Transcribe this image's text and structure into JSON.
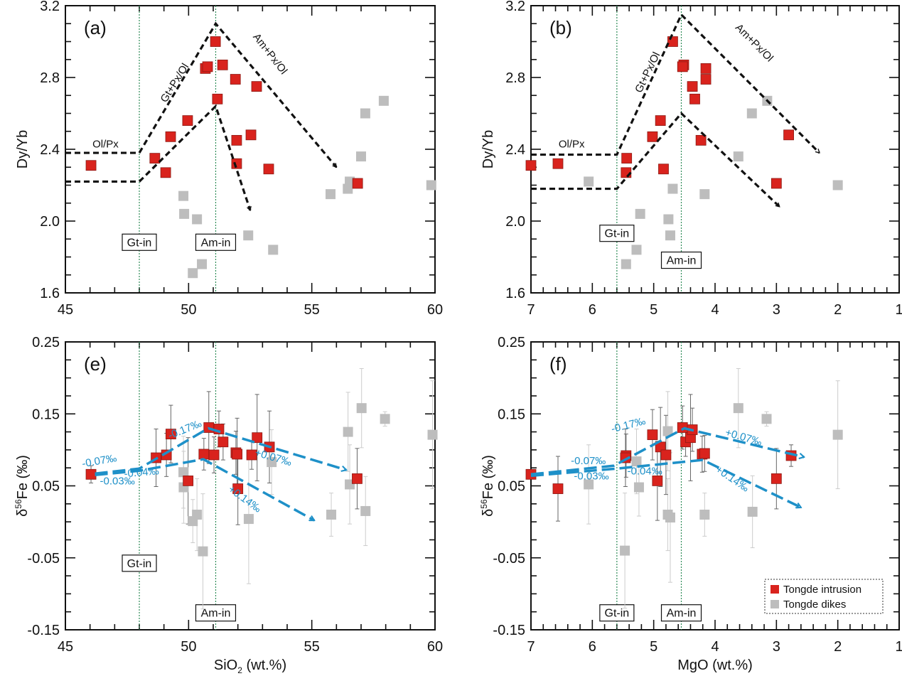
{
  "colors": {
    "intrusion": "#d9231d",
    "dikes": "#bdbdbd",
    "trend_black": "#111111",
    "trend_blue": "#1e90c8",
    "guide_green": "#2e8b57",
    "errbar_intrusion": "#666666",
    "errbar_dikes": "#cccccc"
  },
  "legend": {
    "placement": "bottom-right of panel (f)",
    "items": [
      {
        "label": "Tongde intrusion",
        "series": "intrusion"
      },
      {
        "label": "Tongde dikes",
        "series": "dikes"
      }
    ]
  },
  "chart_data": [
    {
      "id": "a",
      "type": "scatter",
      "panel_label": "(a)",
      "xlabel": "",
      "ylabel": "Dy/Yb",
      "xlim": [
        45,
        60
      ],
      "ylim": [
        1.6,
        3.2
      ],
      "x_reversed": false,
      "xticks": [
        45,
        50,
        55,
        60
      ],
      "yticks": [
        1.6,
        2.0,
        2.4,
        2.8,
        3.2
      ],
      "ytick_labels": [
        "1.6",
        "2.0",
        "2.4",
        "2.8",
        "3.2"
      ],
      "guides": [
        {
          "x": 48.0,
          "label": "Gt-in",
          "label_y": 1.88
        },
        {
          "x": 51.1,
          "label": "Am-in",
          "label_y": 1.88
        }
      ],
      "trends": [
        {
          "points": [
            [
              45,
              2.38
            ],
            [
              48.0,
              2.38
            ],
            [
              51.1,
              3.1
            ],
            [
              56.0,
              2.3
            ]
          ],
          "arrow": true
        },
        {
          "points": [
            [
              45,
              2.22
            ],
            [
              48.0,
              2.22
            ],
            [
              51.1,
              2.64
            ],
            [
              52.5,
              2.06
            ]
          ],
          "arrow": true
        }
      ],
      "annotations": [
        {
          "text": "Ol/Px",
          "x": 46.1,
          "y": 2.41,
          "angle": 0
        },
        {
          "text": "Gt+Px/Ol",
          "x": 49.55,
          "y": 2.76,
          "angle": -58
        },
        {
          "text": "Am+Px/Ol",
          "x": 53.2,
          "y": 2.92,
          "angle": 52
        }
      ],
      "series": [
        {
          "name": "Tongde intrusion",
          "key": "intrusion",
          "points": [
            [
              46.04,
              2.31
            ],
            [
              48.63,
              2.35
            ],
            [
              49.07,
              2.27
            ],
            [
              49.27,
              2.47
            ],
            [
              49.96,
              2.56
            ],
            [
              50.68,
              2.85
            ],
            [
              50.77,
              2.86
            ],
            [
              51.09,
              3.0
            ],
            [
              51.38,
              2.87
            ],
            [
              51.17,
              2.68
            ],
            [
              51.9,
              2.79
            ],
            [
              52.76,
              2.75
            ],
            [
              51.95,
              2.45
            ],
            [
              52.53,
              2.48
            ],
            [
              51.95,
              2.32
            ],
            [
              53.25,
              2.29
            ],
            [
              56.86,
              2.21
            ]
          ]
        },
        {
          "name": "Tongde dikes",
          "key": "dikes",
          "points": [
            [
              49.79,
              2.14
            ],
            [
              49.82,
              2.04
            ],
            [
              50.34,
              2.01
            ],
            [
              52.42,
              1.92
            ],
            [
              53.43,
              1.84
            ],
            [
              50.54,
              1.76
            ],
            [
              50.17,
              1.71
            ],
            [
              55.76,
              2.15
            ],
            [
              56.46,
              2.18
            ],
            [
              56.54,
              2.22
            ],
            [
              57.0,
              2.36
            ],
            [
              57.17,
              2.6
            ],
            [
              57.92,
              2.67
            ],
            [
              59.85,
              2.2
            ]
          ]
        }
      ]
    },
    {
      "id": "b",
      "type": "scatter",
      "panel_label": "(b)",
      "xlabel": "",
      "ylabel": "Dy/Yb",
      "xlim": [
        7,
        1
      ],
      "ylim": [
        1.6,
        3.2
      ],
      "x_reversed": true,
      "xticks": [
        7,
        6,
        5,
        4,
        3,
        2,
        1
      ],
      "yticks": [
        1.6,
        2.0,
        2.4,
        2.8,
        3.2
      ],
      "ytick_labels": [
        "1.6",
        "2.0",
        "2.4",
        "2.8",
        "3.2"
      ],
      "guides": [
        {
          "x": 5.6,
          "label": "Gt-in",
          "label_y": 1.93
        },
        {
          "x": 4.55,
          "label": "Am-in",
          "label_y": 1.78
        }
      ],
      "trends": [
        {
          "points": [
            [
              7,
              2.37
            ],
            [
              5.6,
              2.37
            ],
            [
              4.55,
              3.15
            ],
            [
              2.3,
              2.38
            ]
          ],
          "arrow": true
        },
        {
          "points": [
            [
              7,
              2.18
            ],
            [
              5.6,
              2.18
            ],
            [
              4.55,
              2.6
            ],
            [
              2.95,
              2.08
            ]
          ],
          "arrow": true
        }
      ],
      "annotations": [
        {
          "text": "Ol/Px",
          "x": 6.55,
          "y": 2.41,
          "angle": 0
        },
        {
          "text": "Gt+Px/Ol",
          "x": 5.05,
          "y": 2.82,
          "angle": -64
        },
        {
          "text": "Am+Px/Ol",
          "x": 3.4,
          "y": 2.98,
          "angle": 45
        }
      ],
      "series": [
        {
          "name": "Tongde intrusion",
          "key": "intrusion",
          "points": [
            [
              7.0,
              2.31
            ],
            [
              6.56,
              2.32
            ],
            [
              5.44,
              2.35
            ],
            [
              5.45,
              2.27
            ],
            [
              5.02,
              2.47
            ],
            [
              4.89,
              2.56
            ],
            [
              4.84,
              2.29
            ],
            [
              4.69,
              3.0
            ],
            [
              4.51,
              2.87
            ],
            [
              4.53,
              2.86
            ],
            [
              4.37,
              2.75
            ],
            [
              4.33,
              2.68
            ],
            [
              4.23,
              2.45
            ],
            [
              4.15,
              2.79
            ],
            [
              4.15,
              2.85
            ],
            [
              2.8,
              2.48
            ],
            [
              3.0,
              2.21
            ]
          ]
        },
        {
          "name": "Tongde dikes",
          "key": "dikes",
          "points": [
            [
              6.06,
              2.22
            ],
            [
              5.22,
              2.04
            ],
            [
              5.28,
              1.84
            ],
            [
              5.45,
              1.76
            ],
            [
              4.76,
              2.01
            ],
            [
              4.73,
              1.92
            ],
            [
              4.69,
              2.18
            ],
            [
              4.17,
              2.15
            ],
            [
              3.62,
              2.36
            ],
            [
              3.4,
              2.6
            ],
            [
              3.15,
              2.67
            ],
            [
              2.0,
              2.2
            ]
          ]
        }
      ]
    },
    {
      "id": "e",
      "type": "scatter",
      "panel_label": "(e)",
      "xlabel": "SiO2 (wt.%)",
      "ylabel": "δ56Fe (‰)",
      "xlim": [
        45,
        60
      ],
      "ylim": [
        -0.15,
        0.25
      ],
      "x_reversed": false,
      "xticks": [
        45,
        50,
        55,
        60
      ],
      "yticks": [
        -0.15,
        -0.05,
        0.05,
        0.15,
        0.25
      ],
      "ytick_labels": [
        "-0.15",
        "-0.05",
        "0.05",
        "0.15",
        "0.25"
      ],
      "guides": [
        {
          "x": 48.0,
          "label": "Gt-in",
          "label_y": -0.058
        },
        {
          "x": 51.1,
          "label": "Am-in",
          "label_y": -0.127
        }
      ],
      "trends": [
        {
          "points": [
            [
              46.2,
              0.067
            ],
            [
              48.0,
              0.074
            ],
            [
              50.8,
              0.13
            ],
            [
              56.4,
              0.072
            ]
          ],
          "arrow": true
        },
        {
          "points": [
            [
              46.2,
              0.065
            ],
            [
              48.0,
              0.071
            ],
            [
              50.6,
              0.087
            ],
            [
              55.1,
              0.002
            ]
          ],
          "arrow": true
        }
      ],
      "annotations": [
        {
          "text": "-0.07‰",
          "x": 46.4,
          "y": 0.08,
          "angle": -10,
          "color": "blue"
        },
        {
          "text": "-0.03‰",
          "x": 46.4,
          "y": 0.052,
          "angle": 0,
          "color": "blue"
        },
        {
          "text": "-0.04‰",
          "x": 48.1,
          "y": 0.064,
          "angle": -5,
          "color": "blue"
        },
        {
          "text": "-0.17‰",
          "x": 49.9,
          "y": 0.124,
          "angle": -22,
          "color": "blue"
        },
        {
          "text": "+0.07‰",
          "x": 53.4,
          "y": 0.085,
          "angle": 16,
          "color": "blue"
        },
        {
          "text": "+0.14‰",
          "x": 52.2,
          "y": 0.028,
          "angle": 36,
          "color": "blue"
        }
      ],
      "series": [
        {
          "name": "Tongde intrusion",
          "key": "intrusion",
          "points": [
            [
              46.04,
              0.066,
              0.012
            ],
            [
              48.68,
              0.089,
              0.04
            ],
            [
              49.1,
              0.093,
              0.03
            ],
            [
              49.28,
              0.122,
              0.04
            ],
            [
              49.98,
              0.057,
              0.06
            ],
            [
              50.62,
              0.094,
              0.022
            ],
            [
              50.82,
              0.131,
              0.05
            ],
            [
              51.03,
              0.093,
              0.025
            ],
            [
              51.23,
              0.129,
              0.025
            ],
            [
              51.4,
              0.111,
              0.025
            ],
            [
              51.92,
              0.096,
              0.03
            ],
            [
              51.97,
              0.094,
              0.05
            ],
            [
              52.0,
              0.046,
              0.05
            ],
            [
              52.56,
              0.093,
              0.02
            ],
            [
              52.78,
              0.117,
              0.06
            ],
            [
              53.28,
              0.104,
              0.05
            ],
            [
              56.84,
              0.06,
              0.042
            ]
          ]
        },
        {
          "name": "Tongde dikes",
          "key": "dikes",
          "points": [
            [
              49.79,
              0.069,
              0.05
            ],
            [
              49.8,
              0.048,
              0.05
            ],
            [
              50.17,
              0.001,
              0.03
            ],
            [
              50.34,
              0.01,
              0.05
            ],
            [
              50.58,
              -0.041,
              0.08
            ],
            [
              52.44,
              0.004,
              0.09
            ],
            [
              53.37,
              0.083,
              0.045
            ],
            [
              55.79,
              0.01,
              0.03
            ],
            [
              56.47,
              0.125,
              0.055
            ],
            [
              56.54,
              0.052,
              0.055
            ],
            [
              57.02,
              0.158,
              0.055
            ],
            [
              57.18,
              0.015,
              0.048
            ],
            [
              57.97,
              0.143,
              0.01
            ],
            [
              59.9,
              0.121,
              0.075
            ]
          ]
        }
      ]
    },
    {
      "id": "f",
      "type": "scatter",
      "panel_label": "(f)",
      "xlabel": "MgO (wt.%)",
      "ylabel": "δ56Fe (‰)",
      "xlim": [
        7,
        1
      ],
      "ylim": [
        -0.15,
        0.25
      ],
      "x_reversed": true,
      "xticks": [
        7,
        6,
        5,
        4,
        3,
        2,
        1
      ],
      "yticks": [
        -0.15,
        -0.05,
        0.05,
        0.15,
        0.25
      ],
      "ytick_labels": [
        "-0.15",
        "-0.05",
        "0.05",
        "0.15",
        "0.25"
      ],
      "guides": [
        {
          "x": 5.6,
          "label": "Gt-in",
          "label_y": -0.127
        },
        {
          "x": 4.55,
          "label": "Am-in",
          "label_y": -0.127
        }
      ],
      "trends": [
        {
          "points": [
            [
              7.0,
              0.066
            ],
            [
              5.65,
              0.078
            ],
            [
              4.5,
              0.13
            ],
            [
              2.55,
              0.09
            ]
          ],
          "arrow": true
        },
        {
          "points": [
            [
              7.0,
              0.064
            ],
            [
              5.6,
              0.074
            ],
            [
              4.2,
              0.086
            ],
            [
              2.6,
              0.02
            ]
          ],
          "arrow": true
        }
      ],
      "annotations": [
        {
          "text": "-0.07‰",
          "x": 6.35,
          "y": 0.08,
          "angle": 0,
          "color": "blue"
        },
        {
          "text": "-0.03‰",
          "x": 6.3,
          "y": 0.059,
          "angle": 0,
          "color": "blue"
        },
        {
          "text": "-0.04‰",
          "x": 5.43,
          "y": 0.066,
          "angle": 0,
          "color": "blue"
        },
        {
          "text": "-0.17‰",
          "x": 5.4,
          "y": 0.13,
          "angle": -14,
          "color": "blue"
        },
        {
          "text": "+0.07‰",
          "x": 3.55,
          "y": 0.113,
          "angle": 16,
          "color": "blue"
        },
        {
          "text": "+0.14‰",
          "x": 3.75,
          "y": 0.056,
          "angle": 34,
          "color": "blue"
        }
      ],
      "series": [
        {
          "name": "Tongde intrusion",
          "key": "intrusion",
          "points": [
            [
              7.0,
              0.066,
              0.0
            ],
            [
              6.56,
              0.046,
              0.045
            ],
            [
              5.45,
              0.092,
              0.03
            ],
            [
              5.46,
              0.089,
              0.04
            ],
            [
              5.02,
              0.121,
              0.035
            ],
            [
              4.89,
              0.104,
              0.055
            ],
            [
              4.94,
              0.057,
              0.055
            ],
            [
              4.8,
              0.093,
              0.055
            ],
            [
              4.53,
              0.131,
              0.03
            ],
            [
              4.48,
              0.111,
              0.02
            ],
            [
              4.4,
              0.117,
              0.06
            ],
            [
              4.37,
              0.128,
              0.03
            ],
            [
              4.21,
              0.094,
              0.025
            ],
            [
              4.17,
              0.095,
              0.025
            ],
            [
              3.0,
              0.06,
              0.042
            ],
            [
              2.76,
              0.092,
              0.015
            ]
          ]
        },
        {
          "name": "Tongde dikes",
          "key": "dikes",
          "points": [
            [
              6.06,
              0.052,
              0.055
            ],
            [
              5.47,
              -0.04,
              0.08
            ],
            [
              5.28,
              0.084,
              0.045
            ],
            [
              5.24,
              0.048,
              0.04
            ],
            [
              4.77,
              0.126,
              0.055
            ],
            [
              4.77,
              0.01,
              0.05
            ],
            [
              4.73,
              0.006,
              0.09
            ],
            [
              4.17,
              0.01,
              0.03
            ],
            [
              3.62,
              0.158,
              0.055
            ],
            [
              3.39,
              0.014,
              0.05
            ],
            [
              3.16,
              0.143,
              0.01
            ],
            [
              2.0,
              0.121,
              0.075
            ]
          ]
        }
      ]
    }
  ]
}
